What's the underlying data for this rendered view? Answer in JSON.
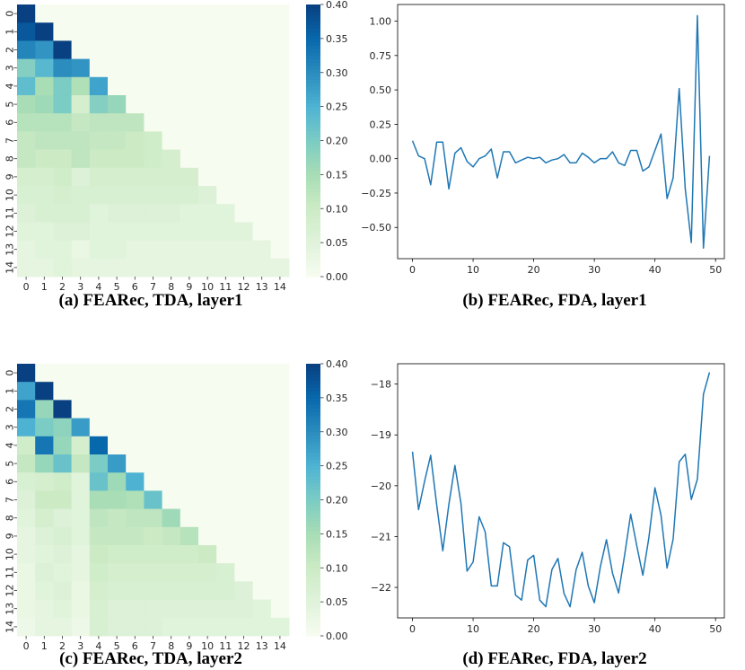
{
  "colors": {
    "line": "#1f77b4",
    "cmap_low": "#f7fcf0",
    "cmap_high": "#084081"
  },
  "chart_data": [
    {
      "type": "heatmap",
      "caption": "(a) FEARec, TDA, layer1",
      "xticks": [
        "0",
        "1",
        "2",
        "3",
        "4",
        "5",
        "6",
        "7",
        "8",
        "9",
        "10",
        "11",
        "12",
        "13",
        "14"
      ],
      "yticks": [
        "0",
        "1",
        "2",
        "3",
        "4",
        "5",
        "6",
        "7",
        "8",
        "9",
        "10",
        "11",
        "12",
        "13",
        "14"
      ],
      "colorbar": {
        "min": 0,
        "max": 0.4,
        "ticks": [
          "0.00",
          "0.05",
          "0.10",
          "0.15",
          "0.20",
          "0.25",
          "0.30",
          "0.35",
          "0.40"
        ]
      },
      "matrix": [
        [
          0.4
        ],
        [
          0.37,
          0.4
        ],
        [
          0.31,
          0.29,
          0.4
        ],
        [
          0.19,
          0.24,
          0.3,
          0.29
        ],
        [
          0.23,
          0.15,
          0.2,
          0.14,
          0.27
        ],
        [
          0.15,
          0.16,
          0.2,
          0.08,
          0.19,
          0.17
        ],
        [
          0.13,
          0.13,
          0.13,
          0.11,
          0.12,
          0.12,
          0.12
        ],
        [
          0.11,
          0.12,
          0.12,
          0.12,
          0.11,
          0.11,
          0.1,
          0.09
        ],
        [
          0.11,
          0.1,
          0.1,
          0.12,
          0.1,
          0.1,
          0.1,
          0.09,
          0.08
        ],
        [
          0.08,
          0.08,
          0.09,
          0.06,
          0.08,
          0.08,
          0.08,
          0.08,
          0.08,
          0.08
        ],
        [
          0.07,
          0.07,
          0.08,
          0.07,
          0.07,
          0.07,
          0.07,
          0.07,
          0.07,
          0.07,
          0.06
        ],
        [
          0.06,
          0.07,
          0.07,
          0.07,
          0.05,
          0.06,
          0.06,
          0.06,
          0.06,
          0.05,
          0.05,
          0.05
        ],
        [
          0.05,
          0.05,
          0.06,
          0.06,
          0.05,
          0.05,
          0.05,
          0.05,
          0.05,
          0.05,
          0.05,
          0.05,
          0.05
        ],
        [
          0.04,
          0.05,
          0.05,
          0.03,
          0.05,
          0.05,
          0.04,
          0.04,
          0.04,
          0.04,
          0.04,
          0.04,
          0.04,
          0.04
        ],
        [
          0.04,
          0.04,
          0.05,
          0.04,
          0.04,
          0.04,
          0.04,
          0.04,
          0.04,
          0.04,
          0.04,
          0.04,
          0.04,
          0.04,
          0.04
        ]
      ]
    },
    {
      "type": "line",
      "caption": "(b) FEARec, FDA, layer1",
      "xticks": [
        "0",
        "10",
        "20",
        "30",
        "40",
        "50"
      ],
      "yticks": [
        "1.00",
        "0.75",
        "0.50",
        "0.25",
        "0.00",
        "−0.25",
        "−0.50"
      ],
      "xlim": [
        -2.45,
        51.45
      ],
      "ylim": [
        -0.727,
        1.121
      ],
      "series": [
        {
          "x": [
            0,
            1,
            2,
            3,
            4,
            5,
            6,
            7,
            8,
            9,
            10,
            11,
            12,
            13,
            14,
            15,
            16,
            17,
            18,
            19,
            20,
            21,
            22,
            23,
            24,
            25,
            26,
            27,
            28,
            29,
            30,
            31,
            32,
            33,
            34,
            35,
            36,
            37,
            38,
            39,
            40,
            41,
            42,
            43,
            44,
            45,
            46,
            47,
            48,
            49
          ],
          "values": [
            0.13,
            0.02,
            0.0,
            -0.19,
            0.12,
            0.12,
            -0.22,
            0.04,
            0.08,
            -0.02,
            -0.06,
            0.0,
            0.02,
            0.07,
            -0.14,
            0.05,
            0.05,
            -0.03,
            -0.01,
            0.01,
            0.0,
            0.01,
            -0.03,
            -0.01,
            0.0,
            0.03,
            -0.03,
            -0.03,
            0.04,
            0.01,
            -0.03,
            0.0,
            0.0,
            0.05,
            -0.03,
            -0.05,
            0.06,
            0.06,
            -0.09,
            -0.06,
            0.06,
            0.18,
            -0.29,
            -0.14,
            0.51,
            -0.22,
            -0.61,
            1.04,
            -0.65,
            0.02
          ]
        }
      ]
    },
    {
      "type": "heatmap",
      "caption": "(c) FEARec, TDA, layer2",
      "xticks": [
        "0",
        "1",
        "2",
        "3",
        "4",
        "5",
        "6",
        "7",
        "8",
        "9",
        "10",
        "11",
        "12",
        "13",
        "14"
      ],
      "yticks": [
        "0",
        "1",
        "2",
        "3",
        "4",
        "5",
        "6",
        "7",
        "8",
        "9",
        "10",
        "11",
        "12",
        "13",
        "14"
      ],
      "colorbar": {
        "min": 0,
        "max": 0.4,
        "ticks": [
          "0.00",
          "0.05",
          "0.10",
          "0.15",
          "0.20",
          "0.25",
          "0.30",
          "0.35",
          "0.40"
        ]
      },
      "matrix": [
        [
          0.4
        ],
        [
          0.27,
          0.4
        ],
        [
          0.33,
          0.17,
          0.4
        ],
        [
          0.25,
          0.2,
          0.18,
          0.28
        ],
        [
          0.09,
          0.33,
          0.17,
          0.08,
          0.35
        ],
        [
          0.11,
          0.17,
          0.22,
          0.11,
          0.2,
          0.28
        ],
        [
          0.07,
          0.08,
          0.09,
          0.05,
          0.22,
          0.16,
          0.25
        ],
        [
          0.06,
          0.1,
          0.1,
          0.05,
          0.15,
          0.15,
          0.14,
          0.22
        ],
        [
          0.05,
          0.08,
          0.06,
          0.05,
          0.12,
          0.11,
          0.12,
          0.12,
          0.16
        ],
        [
          0.04,
          0.06,
          0.07,
          0.05,
          0.11,
          0.11,
          0.11,
          0.1,
          0.11,
          0.13
        ],
        [
          0.04,
          0.05,
          0.06,
          0.04,
          0.1,
          0.09,
          0.09,
          0.09,
          0.09,
          0.09,
          0.1
        ],
        [
          0.03,
          0.06,
          0.05,
          0.04,
          0.09,
          0.08,
          0.08,
          0.08,
          0.08,
          0.08,
          0.08,
          0.07
        ],
        [
          0.03,
          0.05,
          0.06,
          0.03,
          0.08,
          0.07,
          0.07,
          0.07,
          0.07,
          0.07,
          0.07,
          0.07,
          0.06
        ],
        [
          0.03,
          0.04,
          0.05,
          0.03,
          0.07,
          0.06,
          0.06,
          0.06,
          0.06,
          0.06,
          0.06,
          0.06,
          0.06,
          0.05
        ],
        [
          0.02,
          0.04,
          0.04,
          0.02,
          0.07,
          0.06,
          0.06,
          0.06,
          0.05,
          0.05,
          0.05,
          0.05,
          0.05,
          0.05,
          0.05
        ]
      ]
    },
    {
      "type": "line",
      "caption": "(d) FEARec, FDA, layer2",
      "xticks": [
        "0",
        "10",
        "20",
        "30",
        "40",
        "50"
      ],
      "yticks": [
        "−18",
        "−19",
        "−20",
        "−21",
        "−22"
      ],
      "xlim": [
        -2.45,
        51.45
      ],
      "ylim": [
        -22.6,
        -17.6
      ],
      "series": [
        {
          "x": [
            0,
            1,
            2,
            3,
            4,
            5,
            6,
            7,
            8,
            9,
            10,
            11,
            12,
            13,
            14,
            15,
            16,
            17,
            18,
            19,
            20,
            21,
            22,
            23,
            24,
            25,
            26,
            27,
            28,
            29,
            30,
            31,
            32,
            33,
            34,
            35,
            36,
            37,
            38,
            39,
            40,
            41,
            42,
            43,
            44,
            45,
            46,
            47,
            48,
            49
          ],
          "values": [
            -19.33,
            -20.47,
            -19.91,
            -19.4,
            -20.38,
            -21.28,
            -20.37,
            -19.6,
            -20.35,
            -21.68,
            -21.5,
            -20.61,
            -20.91,
            -21.97,
            -21.97,
            -21.12,
            -21.2,
            -22.15,
            -22.25,
            -21.46,
            -21.37,
            -22.25,
            -22.38,
            -21.65,
            -21.43,
            -22.12,
            -22.38,
            -21.65,
            -21.31,
            -21.97,
            -22.3,
            -21.59,
            -21.06,
            -21.72,
            -22.11,
            -21.36,
            -20.56,
            -21.18,
            -21.76,
            -21.02,
            -20.04,
            -20.58,
            -21.62,
            -21.05,
            -19.53,
            -19.38,
            -20.27,
            -19.87,
            -18.2,
            -17.77
          ]
        }
      ]
    }
  ]
}
